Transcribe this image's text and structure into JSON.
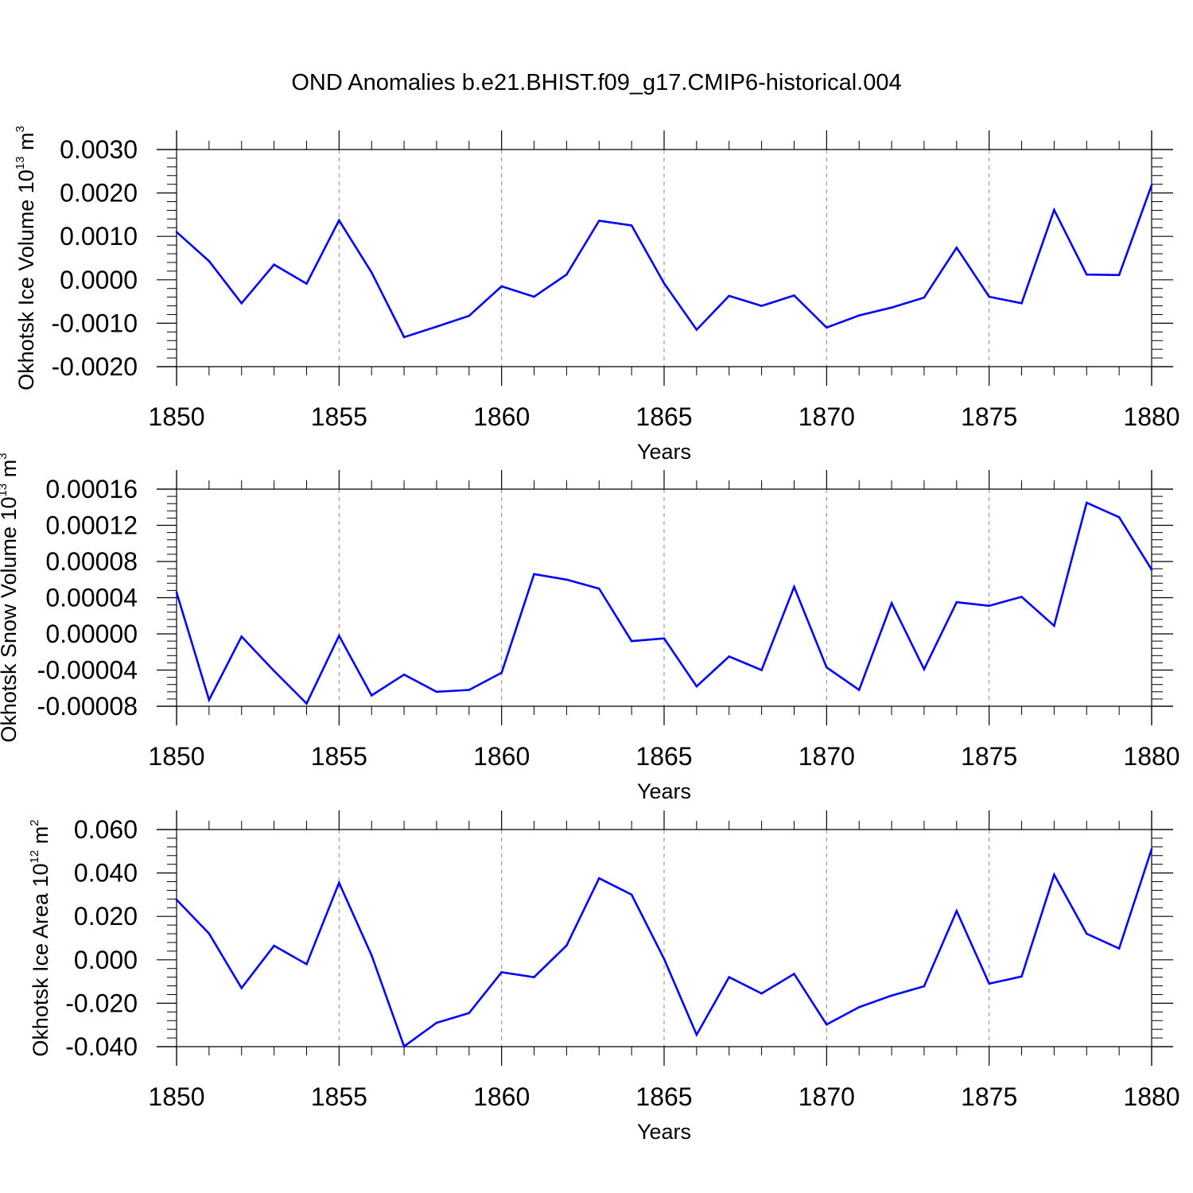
{
  "title": "OND Anomalies b.e21.BHIST.f09_g17.CMIP6-historical.004",
  "colors": {
    "line": "#0000ff",
    "axes": "#000000",
    "grid": "#888888"
  },
  "chart_data": [
    {
      "type": "line",
      "name": "ice-volume",
      "ylabel": {
        "main": "Okhotsk Ice Volume 10",
        "sup": "13",
        "unit": " m",
        "unit_sup": "3"
      },
      "xlabel": "Years",
      "xlim": [
        1850,
        1880
      ],
      "ylim": [
        -0.002,
        0.003
      ],
      "yticks": [
        -0.002,
        -0.001,
        0.0,
        0.001,
        0.002,
        0.003
      ],
      "ytick_labels": [
        "-0.0020",
        "-0.0010",
        "0.0000",
        "0.0010",
        "0.0020",
        "0.0030"
      ],
      "xticks": [
        1850,
        1855,
        1860,
        1865,
        1870,
        1875,
        1880
      ],
      "xtick_labels": [
        "1850",
        "1855",
        "1860",
        "1865",
        "1870",
        "1875",
        "1880"
      ],
      "grid": "vertical dashed at major x ticks",
      "x": [
        1850,
        1851,
        1852,
        1853,
        1854,
        1855,
        1856,
        1857,
        1858,
        1859,
        1860,
        1861,
        1862,
        1863,
        1864,
        1865,
        1866,
        1867,
        1868,
        1869,
        1870,
        1871,
        1872,
        1873,
        1874,
        1875,
        1876,
        1877,
        1878,
        1879,
        1880
      ],
      "values": [
        0.0011,
        0.00043,
        -0.00054,
        0.00035,
        -9e-05,
        0.00137,
        0.00017,
        -0.00132,
        -0.00108,
        -0.00083,
        -0.00015,
        -0.00039,
        0.00012,
        0.00136,
        0.00125,
        -8e-05,
        -0.00115,
        -0.00037,
        -0.0006,
        -0.00036,
        -0.0011,
        -0.00082,
        -0.00064,
        -0.00041,
        0.00074,
        -0.00039,
        -0.00054,
        0.00161,
        0.00012,
        0.00011,
        0.00218
      ]
    },
    {
      "type": "line",
      "name": "snow-volume",
      "ylabel": {
        "main": "Okhotsk Snow Volume 10",
        "sup": "13",
        "unit": " m",
        "unit_sup": "3"
      },
      "xlabel": "Years",
      "xlim": [
        1850,
        1880
      ],
      "ylim": [
        -8e-05,
        0.00016
      ],
      "yticks": [
        -8e-05,
        -4e-05,
        0.0,
        4e-05,
        8e-05,
        0.00012,
        0.00016
      ],
      "ytick_labels": [
        "-0.00008",
        "-0.00004",
        "0.00000",
        "0.00004",
        "0.00008",
        "0.00012",
        "0.00016"
      ],
      "xticks": [
        1850,
        1855,
        1860,
        1865,
        1870,
        1875,
        1880
      ],
      "xtick_labels": [
        "1850",
        "1855",
        "1860",
        "1865",
        "1870",
        "1875",
        "1880"
      ],
      "grid": "vertical dashed at major x ticks",
      "x": [
        1850,
        1851,
        1852,
        1853,
        1854,
        1855,
        1856,
        1857,
        1858,
        1859,
        1860,
        1861,
        1862,
        1863,
        1864,
        1865,
        1866,
        1867,
        1868,
        1869,
        1870,
        1871,
        1872,
        1873,
        1874,
        1875,
        1876,
        1877,
        1878,
        1879,
        1880
      ],
      "values": [
        4.6e-05,
        -7.3e-05,
        -3e-06,
        -4.1e-05,
        -7.7e-05,
        -2e-06,
        -6.8e-05,
        -4.5e-05,
        -6.4e-05,
        -6.2e-05,
        -4.3e-05,
        6.6e-05,
        6e-05,
        5e-05,
        -8e-06,
        -5e-06,
        -5.8e-05,
        -2.5e-05,
        -4e-05,
        5.2e-05,
        -3.7e-05,
        -6.2e-05,
        3.4e-05,
        -3.9e-05,
        3.5e-05,
        3.1e-05,
        4.1e-05,
        9e-06,
        0.000145,
        0.000129,
        7.1e-05
      ]
    },
    {
      "type": "line",
      "name": "ice-area",
      "ylabel": {
        "main": "Okhotsk Ice Area 10",
        "sup": "12",
        "unit": " m",
        "unit_sup": "2"
      },
      "xlabel": "Years",
      "xlim": [
        1850,
        1880
      ],
      "ylim": [
        -0.04,
        0.06
      ],
      "yticks": [
        -0.04,
        -0.02,
        0.0,
        0.02,
        0.04,
        0.06
      ],
      "ytick_labels": [
        "-0.040",
        "-0.020",
        "0.000",
        "0.020",
        "0.040",
        "0.060"
      ],
      "xticks": [
        1850,
        1855,
        1860,
        1865,
        1870,
        1875,
        1880
      ],
      "xtick_labels": [
        "1850",
        "1855",
        "1860",
        "1865",
        "1870",
        "1875",
        "1880"
      ],
      "grid": "vertical dashed at major x ticks",
      "x": [
        1850,
        1851,
        1852,
        1853,
        1854,
        1855,
        1856,
        1857,
        1858,
        1859,
        1860,
        1861,
        1862,
        1863,
        1864,
        1865,
        1866,
        1867,
        1868,
        1869,
        1870,
        1871,
        1872,
        1873,
        1874,
        1875,
        1876,
        1877,
        1878,
        1879,
        1880
      ],
      "values": [
        0.0277,
        0.0121,
        -0.013,
        0.0065,
        -0.002,
        0.0355,
        0.0021,
        -0.0399,
        -0.029,
        -0.0245,
        -0.0057,
        -0.008,
        0.0066,
        0.0376,
        0.03,
        0.0004,
        -0.0345,
        -0.008,
        -0.0155,
        -0.0065,
        -0.0298,
        -0.0218,
        -0.0165,
        -0.0122,
        0.0225,
        -0.011,
        -0.0077,
        0.0392,
        0.012,
        0.0052,
        0.051
      ]
    }
  ]
}
